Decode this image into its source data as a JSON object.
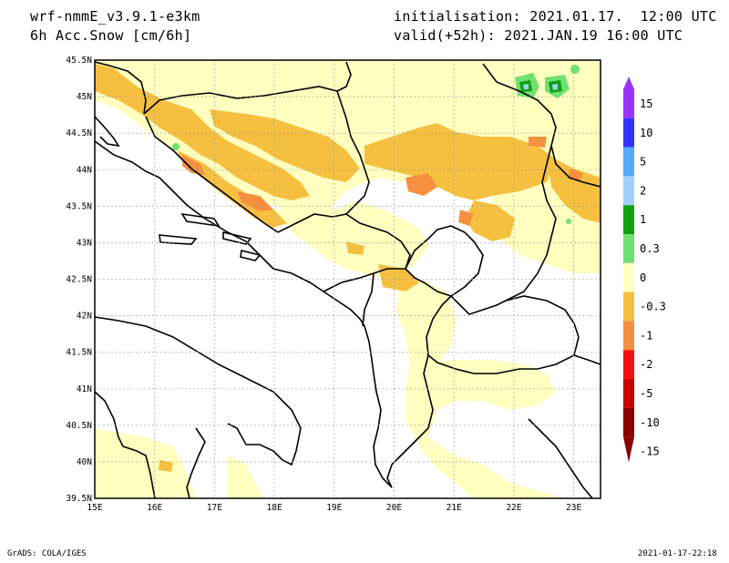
{
  "header": {
    "model": "wrf-nmmE_v3.9.1-e3km",
    "field": "6h Acc.Snow [cm/6h]",
    "init": "initialisation: 2021.01.17.  12:00 UTC",
    "valid": "valid(+52h): 2021.JAN.19 16:00 UTC"
  },
  "map": {
    "lat_labels": [
      "45.5N",
      "45N",
      "44.5N",
      "44N",
      "43.5N",
      "43N",
      "42.5N",
      "42N",
      "41.5N",
      "41N",
      "40.5N",
      "40N",
      "39.5N"
    ],
    "lon_labels": [
      "15E",
      "16E",
      "17E",
      "18E",
      "19E",
      "20E",
      "21E",
      "22E",
      "23E"
    ],
    "colors": {
      "light_yellow": "#ffffc0",
      "yellow_orange": "#f5c040",
      "orange": "#f59040",
      "light_green": "#70e070",
      "green": "#10a010",
      "light_blue": "#a0d0ff",
      "blue": "#4080ff",
      "border": "#000000",
      "grid": "#999999"
    }
  },
  "legend": {
    "labels": [
      "15",
      "10",
      "5",
      "2",
      "1",
      "0.3",
      "0",
      "-0.3",
      "-1",
      "-2",
      "-5",
      "-10",
      "-15"
    ],
    "colors": [
      "#9933ff",
      "#3333ff",
      "#55aaff",
      "#a0d0ff",
      "#13a013",
      "#70e070",
      "#ffffff",
      "#ffffc0",
      "#f5c040",
      "#f59040",
      "#ff1010",
      "#c80000",
      "#8a0000"
    ]
  },
  "footer": {
    "left": "GrADS: COLA/IGES",
    "right": "2021-01-17-22:18"
  }
}
